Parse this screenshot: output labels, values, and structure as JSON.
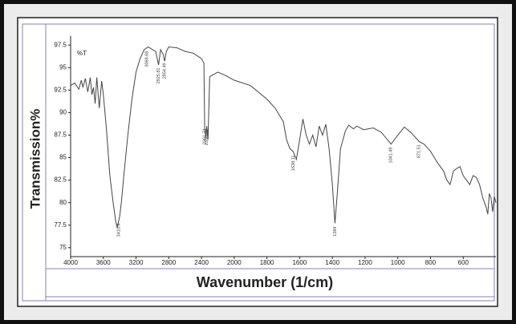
{
  "chart_data": {
    "type": "line",
    "xlabel": "Wavenumber (1/cm)",
    "ylabel": "Transmission%",
    "y_unit_label": "%T",
    "x": [
      4000,
      3950,
      3900,
      3870,
      3850,
      3820,
      3790,
      3760,
      3740,
      3720,
      3700,
      3680,
      3650,
      3620,
      3600,
      3560,
      3520,
      3480,
      3450,
      3430,
      3400,
      3380,
      3350,
      3300,
      3250,
      3200,
      3150,
      3100,
      3050,
      3000,
      2960,
      2925,
      2900,
      2870,
      2850,
      2830,
      2800,
      2700,
      2600,
      2500,
      2400,
      2370,
      2361,
      2345,
      2336,
      2320,
      2300,
      2200,
      2100,
      2000,
      1900,
      1800,
      1750,
      1700,
      1680,
      1660,
      1640,
      1620,
      1600,
      1580,
      1560,
      1540,
      1520,
      1500,
      1480,
      1460,
      1440,
      1420,
      1400,
      1384,
      1370,
      1350,
      1320,
      1300,
      1271,
      1250,
      1209,
      1150,
      1100,
      1050,
      1041,
      1000,
      960,
      920,
      880,
      871,
      840,
      800,
      760,
      720,
      700,
      680,
      660,
      640,
      620,
      600,
      580,
      560,
      540,
      520,
      500,
      480,
      460,
      450,
      440,
      430,
      420,
      410,
      400
    ],
    "values": [
      93.0,
      93.3,
      92.6,
      93.6,
      92.8,
      93.8,
      92.3,
      93.9,
      92.0,
      92.8,
      91.0,
      93.9,
      90.5,
      93.5,
      92.0,
      88.0,
      83.0,
      80.0,
      78.0,
      77.2,
      78.5,
      80.0,
      83.0,
      87.5,
      91.5,
      94.5,
      96.0,
      97.0,
      97.3,
      97.0,
      96.8,
      95.3,
      97.0,
      96.5,
      95.7,
      96.8,
      97.3,
      97.2,
      96.8,
      96.6,
      96.0,
      95.5,
      88.0,
      87.3,
      88.5,
      87.0,
      94.0,
      94.5,
      94.1,
      93.6,
      93.0,
      91.5,
      90.5,
      89.0,
      87.0,
      86.0,
      85.7,
      84.8,
      87.0,
      89.3,
      87.5,
      86.5,
      87.5,
      86.2,
      88.5,
      87.5,
      88.7,
      86.0,
      82.0,
      77.7,
      81.0,
      86.0,
      88.0,
      88.6,
      88.2,
      88.5,
      88.1,
      88.3,
      87.8,
      86.7,
      86.5,
      87.5,
      88.4,
      87.8,
      87.0,
      86.8,
      86.5,
      85.7,
      84.5,
      83.5,
      82.5,
      82.0,
      83.5,
      83.8,
      84.0,
      83.0,
      82.5,
      82.0,
      83.0,
      82.8,
      82.0,
      80.5,
      79.5,
      78.7,
      81.0,
      80.5,
      79.0,
      80.7,
      80.0
    ],
    "color": "#444444",
    "annotations": [
      3410.4,
      3068.68,
      2925.81,
      2854.49,
      2361.71,
      2336.05,
      1638.11,
      1384,
      1041.49,
      871.51
    ],
    "xlim": [
      4000,
      400
    ],
    "xticks": [
      4000,
      3600,
      3200,
      2800,
      2400,
      2000,
      1800,
      1600,
      1400,
      1200,
      1000,
      800,
      600
    ],
    "ylim": [
      74,
      98.5
    ],
    "yticks": [
      75,
      77.5,
      80,
      82.5,
      85,
      87.5,
      90,
      92.5,
      95,
      97.5
    ]
  }
}
